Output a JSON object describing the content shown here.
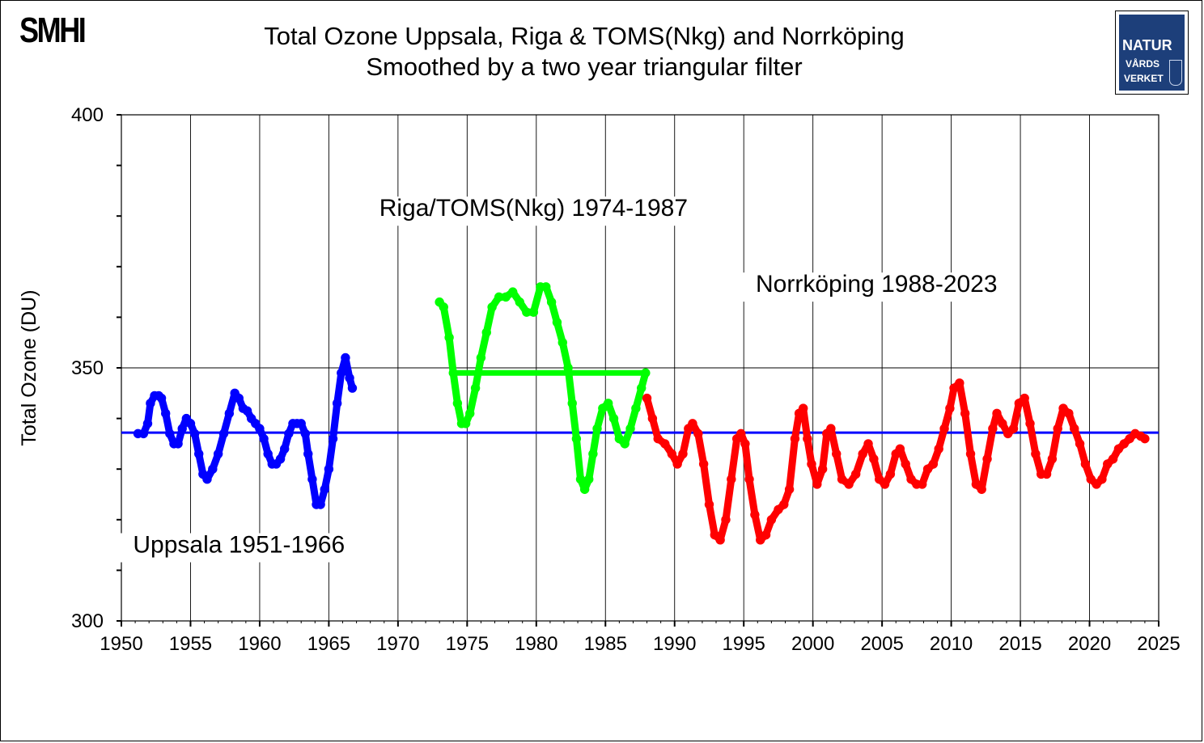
{
  "logos": {
    "smhi": "SMHI",
    "naturvardsverket": [
      "NATUR",
      "VÅRDS",
      "VERKET"
    ]
  },
  "chart_data": {
    "type": "scatter",
    "title": "Total Ozone Uppsala, Riga & TOMS(Nkg) and Norrköping",
    "subtitle": "Smoothed by a two year triangular filter",
    "xlabel": "",
    "ylabel": "Total Ozone (DU)",
    "xlim": [
      1950,
      2025
    ],
    "ylim": [
      300,
      400
    ],
    "xticks": [
      1950,
      1955,
      1960,
      1965,
      1970,
      1975,
      1980,
      1985,
      1990,
      1995,
      2000,
      2005,
      2010,
      2015,
      2020,
      2025
    ],
    "yticks_labeled": [
      300,
      350,
      400
    ],
    "grid": "vertical lines every 5 years, horizontal line at 350",
    "mean_line": {
      "value": 337.2,
      "color": "#0000ff"
    },
    "series": [
      {
        "name": "Uppsala 1951-1966",
        "label": "Uppsala 1951-1966",
        "color": "#0000ff",
        "points": [
          [
            1951.2,
            337
          ],
          [
            1951.6,
            337
          ],
          [
            1951.9,
            339
          ],
          [
            1952.1,
            343
          ],
          [
            1952.4,
            344.5
          ],
          [
            1952.7,
            344.5
          ],
          [
            1952.9,
            344
          ],
          [
            1953.2,
            341
          ],
          [
            1953.5,
            337
          ],
          [
            1953.8,
            335
          ],
          [
            1954.1,
            335
          ],
          [
            1954.4,
            338
          ],
          [
            1954.7,
            340
          ],
          [
            1955.0,
            339
          ],
          [
            1955.3,
            337
          ],
          [
            1955.6,
            333
          ],
          [
            1955.9,
            329
          ],
          [
            1956.2,
            328
          ],
          [
            1956.6,
            330
          ],
          [
            1957.0,
            333
          ],
          [
            1957.4,
            337
          ],
          [
            1957.8,
            341
          ],
          [
            1958.2,
            345
          ],
          [
            1958.5,
            344
          ],
          [
            1958.8,
            342
          ],
          [
            1959.1,
            341.5
          ],
          [
            1959.4,
            340
          ],
          [
            1959.7,
            339
          ],
          [
            1960.0,
            338
          ],
          [
            1960.3,
            336
          ],
          [
            1960.6,
            333
          ],
          [
            1960.9,
            331
          ],
          [
            1961.2,
            331
          ],
          [
            1961.5,
            332
          ],
          [
            1961.8,
            334
          ],
          [
            1962.1,
            337
          ],
          [
            1962.4,
            339
          ],
          [
            1962.7,
            339
          ],
          [
            1963.0,
            339
          ],
          [
            1963.3,
            337
          ],
          [
            1963.5,
            333
          ],
          [
            1963.8,
            328
          ],
          [
            1964.1,
            323
          ],
          [
            1964.4,
            323
          ],
          [
            1964.7,
            326
          ],
          [
            1965.0,
            330
          ],
          [
            1965.3,
            336
          ],
          [
            1965.6,
            343
          ],
          [
            1965.9,
            349
          ],
          [
            1966.2,
            352
          ],
          [
            1966.5,
            348
          ],
          [
            1966.7,
            346
          ]
        ]
      },
      {
        "name": "Riga/TOMS(Nkg) 1974-1987",
        "label": "Riga/TOMS(Nkg)   1974-1987",
        "color": "#00ff00",
        "points": [
          [
            1973.0,
            363
          ],
          [
            1973.3,
            362
          ],
          [
            1973.7,
            356
          ],
          [
            1974.0,
            349
          ],
          [
            1974.3,
            343
          ],
          [
            1974.6,
            339
          ],
          [
            1974.9,
            339
          ],
          [
            1975.2,
            341
          ],
          [
            1975.6,
            346
          ],
          [
            1976.0,
            352
          ],
          [
            1976.4,
            357
          ],
          [
            1976.8,
            362
          ],
          [
            1977.3,
            364
          ],
          [
            1977.8,
            364
          ],
          [
            1978.3,
            365
          ],
          [
            1978.8,
            363
          ],
          [
            1979.3,
            361
          ],
          [
            1979.8,
            361
          ],
          [
            1980.3,
            366
          ],
          [
            1980.7,
            366
          ],
          [
            1981.1,
            363
          ],
          [
            1981.5,
            359
          ],
          [
            1981.9,
            355
          ],
          [
            1982.3,
            350
          ],
          [
            1982.6,
            343
          ],
          [
            1982.9,
            336
          ],
          [
            1983.2,
            328
          ],
          [
            1983.5,
            326
          ],
          [
            1983.8,
            328
          ],
          [
            1984.1,
            333
          ],
          [
            1984.4,
            338
          ],
          [
            1984.8,
            342
          ],
          [
            1985.2,
            343
          ],
          [
            1985.6,
            340
          ],
          [
            1986.0,
            336
          ],
          [
            1986.4,
            335
          ],
          [
            1986.8,
            338
          ],
          [
            1987.2,
            342
          ],
          [
            1987.6,
            346
          ],
          [
            1987.9,
            349
          ]
        ]
      },
      {
        "name": "Riga/TOMS(Nkg) level line",
        "color": "#00ff00",
        "points": [
          [
            1974.3,
            349
          ],
          [
            1987.9,
            349
          ]
        ]
      },
      {
        "name": "Norrköping 1988-2023",
        "label": "Norrköping  1988-2023",
        "color": "#ff0000",
        "points": [
          [
            1988.0,
            344
          ],
          [
            1988.4,
            340
          ],
          [
            1988.8,
            336
          ],
          [
            1989.3,
            335
          ],
          [
            1989.8,
            333
          ],
          [
            1990.2,
            331
          ],
          [
            1990.6,
            333
          ],
          [
            1991.0,
            338
          ],
          [
            1991.3,
            339
          ],
          [
            1991.7,
            337
          ],
          [
            1992.1,
            331
          ],
          [
            1992.5,
            323
          ],
          [
            1992.9,
            317
          ],
          [
            1993.3,
            316
          ],
          [
            1993.7,
            320
          ],
          [
            1994.1,
            328
          ],
          [
            1994.5,
            336
          ],
          [
            1994.8,
            337
          ],
          [
            1995.1,
            335
          ],
          [
            1995.4,
            328
          ],
          [
            1995.8,
            321
          ],
          [
            1996.2,
            316
          ],
          [
            1996.6,
            317
          ],
          [
            1997.0,
            320
          ],
          [
            1997.5,
            322
          ],
          [
            1997.9,
            323
          ],
          [
            1998.3,
            326
          ],
          [
            1998.7,
            336
          ],
          [
            1999.0,
            341
          ],
          [
            1999.3,
            342
          ],
          [
            1999.6,
            336
          ],
          [
            1999.9,
            331
          ],
          [
            2000.3,
            327
          ],
          [
            2000.7,
            330
          ],
          [
            2001.0,
            337
          ],
          [
            2001.3,
            338
          ],
          [
            2001.7,
            333
          ],
          [
            2002.1,
            328
          ],
          [
            2002.6,
            327
          ],
          [
            2003.1,
            329
          ],
          [
            2003.6,
            333
          ],
          [
            2004.0,
            335
          ],
          [
            2004.4,
            332
          ],
          [
            2004.8,
            328
          ],
          [
            2005.2,
            327
          ],
          [
            2005.6,
            329
          ],
          [
            2006.0,
            333
          ],
          [
            2006.3,
            334
          ],
          [
            2006.7,
            331
          ],
          [
            2007.1,
            328
          ],
          [
            2007.5,
            327
          ],
          [
            2007.9,
            327
          ],
          [
            2008.3,
            330
          ],
          [
            2008.7,
            331
          ],
          [
            2009.1,
            334
          ],
          [
            2009.5,
            338
          ],
          [
            2009.9,
            342
          ],
          [
            2010.2,
            346
          ],
          [
            2010.6,
            347
          ],
          [
            2011.0,
            341
          ],
          [
            2011.4,
            333
          ],
          [
            2011.8,
            327
          ],
          [
            2012.2,
            326
          ],
          [
            2012.6,
            332
          ],
          [
            2013.0,
            338
          ],
          [
            2013.3,
            341
          ],
          [
            2013.7,
            339
          ],
          [
            2014.1,
            337
          ],
          [
            2014.5,
            338
          ],
          [
            2014.9,
            343
          ],
          [
            2015.3,
            344
          ],
          [
            2015.7,
            339
          ],
          [
            2016.1,
            333
          ],
          [
            2016.5,
            329
          ],
          [
            2016.9,
            329
          ],
          [
            2017.3,
            332
          ],
          [
            2017.7,
            338
          ],
          [
            2018.1,
            342
          ],
          [
            2018.5,
            341
          ],
          [
            2018.9,
            338
          ],
          [
            2019.3,
            335
          ],
          [
            2019.7,
            331
          ],
          [
            2020.1,
            328
          ],
          [
            2020.5,
            327
          ],
          [
            2020.9,
            328
          ],
          [
            2021.3,
            331
          ],
          [
            2021.7,
            332
          ],
          [
            2022.1,
            334
          ],
          [
            2022.5,
            335
          ],
          [
            2022.9,
            336
          ],
          [
            2023.3,
            337
          ],
          [
            2023.7,
            336.5
          ],
          [
            2024.0,
            336
          ]
        ]
      }
    ],
    "annotations": [
      {
        "text": "Uppsala 1951-1966",
        "series": 0
      },
      {
        "text": "Riga/TOMS(Nkg)   1974-1987",
        "series": 1
      },
      {
        "text": "Norrköping  1988-2023",
        "series": 3
      }
    ]
  }
}
